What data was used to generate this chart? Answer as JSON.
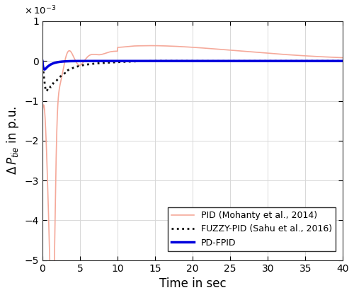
{
  "title": "",
  "xlabel": "Time in sec",
  "xlim": [
    0,
    40
  ],
  "ylim": [
    -5,
    1
  ],
  "yticks": [
    -5,
    -4,
    -3,
    -2,
    -1,
    0,
    1
  ],
  "xticks": [
    0,
    5,
    10,
    15,
    20,
    25,
    30,
    35,
    40
  ],
  "lines": [
    {
      "label": "PID (Mohanty et al., 2014)",
      "color": "#F5A99A",
      "linestyle": "-",
      "linewidth": 1.2,
      "key": "pid"
    },
    {
      "label": "FUZZY-PID (Sahu et al., 2016)",
      "color": "#111111",
      "linestyle": ":",
      "linewidth": 2.0,
      "key": "fuzzy"
    },
    {
      "label": "PD-FPID",
      "color": "#0000DD",
      "linestyle": "-",
      "linewidth": 2.5,
      "key": "pdfpid"
    }
  ],
  "background_color": "#ffffff",
  "legend_fontsize": 9,
  "axis_fontsize": 12,
  "tick_fontsize": 10
}
